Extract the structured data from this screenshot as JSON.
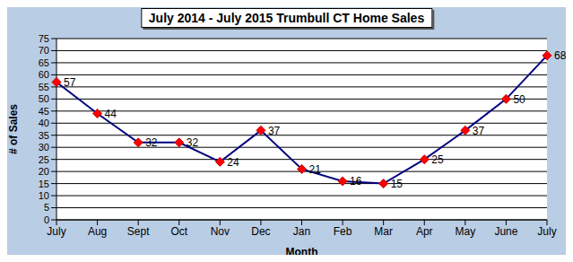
{
  "chart_data": {
    "type": "line",
    "title": "July 2014 - July 2015 Trumbull CT Home Sales",
    "x_label": "Month",
    "y_label": "# of Sales",
    "categories": [
      "July",
      "Aug",
      "Sept",
      "Oct",
      "Nov",
      "Dec",
      "Jan",
      "Feb",
      "Mar",
      "Apr",
      "May",
      "June",
      "July"
    ],
    "values": [
      57,
      44,
      32,
      32,
      24,
      37,
      21,
      16,
      15,
      25,
      37,
      50,
      68
    ],
    "color": "#000080",
    "marker": "diamond",
    "ylim": [
      0,
      75
    ],
    "yticks": [
      0,
      5,
      10,
      15,
      20,
      25,
      30,
      35,
      40,
      45,
      50,
      55,
      60,
      65,
      70,
      75
    ],
    "grid": true,
    "data_labels": true
  }
}
